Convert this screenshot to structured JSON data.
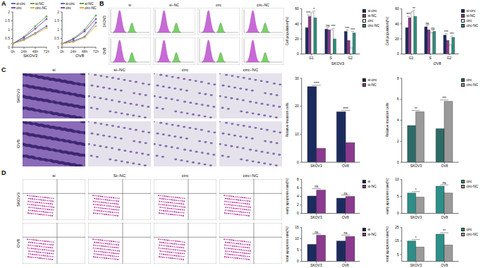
{
  "panel_labels": [
    "A",
    "B",
    "C",
    "D"
  ],
  "image_panels": [
    {
      "columns": [
        "si",
        "si−NC",
        "circ",
        "circ−NC"
      ],
      "rows": [
        "SKOV3",
        "OV8"
      ]
    },
    {
      "columns": [
        "si",
        "si−NC",
        "circ",
        "circ−NC"
      ],
      "rows": [
        "SKOV3",
        "OV8"
      ]
    },
    {
      "columns": [
        "si",
        "Si−NC",
        "circ",
        "circ−NC"
      ],
      "rows": [
        "SKOV3",
        "OV8"
      ]
    }
  ],
  "chart_data": [
    {
      "type": "line",
      "title": "SKOV3",
      "categories": [
        "0h",
        "24h",
        "48h",
        "72h"
      ],
      "ylim": [
        0,
        2
      ],
      "yticks": [
        0,
        0.5,
        1,
        1.5,
        2
      ],
      "grid": false,
      "marker": "circle",
      "series": [
        {
          "name": "si-circ",
          "color": "#4a6fc0",
          "values": [
            0.2,
            0.45,
            0.8,
            1.2
          ]
        },
        {
          "name": "si-NC",
          "color": "#5aa55a",
          "values": [
            0.2,
            0.6,
            1.2,
            1.75
          ]
        },
        {
          "name": "circ",
          "color": "#8e44ad",
          "values": [
            0.2,
            0.55,
            1.05,
            1.6
          ]
        },
        {
          "name": "circ-NC",
          "color": "#e0b040",
          "values": [
            0.2,
            0.4,
            0.75,
            1.1
          ]
        }
      ]
    },
    {
      "type": "line",
      "title": "OV8",
      "categories": [
        "0h",
        "24h",
        "48h",
        "72h"
      ],
      "ylim": [
        0,
        2
      ],
      "yticks": [
        0,
        0.5,
        1,
        1.5,
        2
      ],
      "grid": false,
      "marker": "circle",
      "series": [
        {
          "name": "si-circ",
          "color": "#4a6fc0",
          "values": [
            0.2,
            0.35,
            0.6,
            1.4
          ]
        },
        {
          "name": "si-NC",
          "color": "#5aa55a",
          "values": [
            0.2,
            0.5,
            1.0,
            1.8
          ]
        },
        {
          "name": "circ",
          "color": "#8e44ad",
          "values": [
            0.2,
            0.45,
            0.9,
            1.6
          ]
        },
        {
          "name": "circ-NC",
          "color": "#e0b040",
          "values": [
            0.2,
            0.3,
            0.55,
            1.2
          ]
        }
      ]
    },
    {
      "type": "bar",
      "x_label": "SKOV3",
      "y_label": "Cell population(%)",
      "categories": [
        "G1",
        "S",
        "G2"
      ],
      "ylim": [
        0,
        60
      ],
      "yticks": [
        0,
        20,
        40,
        60
      ],
      "series": [
        {
          "name": "si-circ",
          "color": "#1c2b5e",
          "values": [
            35,
            33,
            30
          ]
        },
        {
          "name": "si-NC",
          "color": "#8b3a8f",
          "values": [
            50,
            32,
            18
          ]
        },
        {
          "name": "circ",
          "color": "#ffffff",
          "values": [
            55,
            32,
            8
          ]
        },
        {
          "name": "circ-NC",
          "color": "#2e8f7e",
          "values": [
            48,
            20,
            28
          ]
        }
      ],
      "annotations": [
        [
          "***",
          "*"
        ],
        [
          "ns",
          "***"
        ],
        [
          "***",
          "***"
        ]
      ]
    },
    {
      "type": "bar",
      "x_label": "OV8",
      "y_label": "Cell population(%)",
      "categories": [
        "G1",
        "S",
        "G2"
      ],
      "ylim": [
        0,
        60
      ],
      "yticks": [
        0,
        20,
        40,
        60
      ],
      "series": [
        {
          "name": "si-circ",
          "color": "#1c2b5e",
          "values": [
            35,
            36,
            25
          ]
        },
        {
          "name": "si-NC",
          "color": "#8b3a8f",
          "values": [
            48,
            32,
            18
          ]
        },
        {
          "name": "circ",
          "color": "#ffffff",
          "values": [
            56,
            28,
            12
          ]
        },
        {
          "name": "circ-NC",
          "color": "#2e8f7e",
          "values": [
            50,
            30,
            22
          ]
        }
      ],
      "annotations": [
        [
          "***",
          "**"
        ],
        [
          "ns",
          "ns"
        ],
        [
          "***",
          "***"
        ]
      ]
    },
    {
      "type": "bar",
      "y_label": "Relative invasion cells",
      "categories": [
        "SKOV3",
        "OV8"
      ],
      "ylim": [
        0,
        30
      ],
      "yticks": [
        0,
        10,
        20,
        30
      ],
      "series": [
        {
          "name": "si-circ",
          "color": "#1c2b5e",
          "values": [
            27,
            18
          ]
        },
        {
          "name": "si-NC",
          "color": "#8b3a8f",
          "values": [
            5,
            7
          ]
        }
      ],
      "annotations": [
        "****",
        "****"
      ]
    },
    {
      "type": "bar",
      "y_label": "Relative invasion cells",
      "categories": [
        "SKOV3",
        "OV8"
      ],
      "ylim": [
        0,
        8
      ],
      "yticks": [
        0,
        2,
        4,
        6,
        8
      ],
      "series": [
        {
          "name": "circ",
          "color": "#2d6b66",
          "values": [
            3.5,
            3.2
          ]
        },
        {
          "name": "circ-NC",
          "color": "#9a9a9a",
          "values": [
            4.8,
            5.8
          ]
        }
      ],
      "annotations": [
        "**",
        "***"
      ]
    },
    {
      "type": "bar",
      "y_label": "early apoptosis rate(%)",
      "categories": [
        "SKOV3",
        "OV8"
      ],
      "ylim": [
        0,
        8
      ],
      "yticks": [
        0,
        2,
        4,
        6,
        8
      ],
      "series": [
        {
          "name": "si",
          "color": "#1c2b5e",
          "values": [
            4.1,
            3.6
          ]
        },
        {
          "name": "si-NC",
          "color": "#8b3a8f",
          "values": [
            5.5,
            4.0
          ]
        }
      ],
      "annotations": [
        "ns",
        "ns"
      ]
    },
    {
      "type": "bar",
      "y_label": "early apoptosis rate(%)",
      "categories": [
        "SKOV3",
        "OV8"
      ],
      "ylim": [
        0,
        10
      ],
      "yticks": [
        0,
        5,
        10
      ],
      "series": [
        {
          "name": "circ",
          "color": "#2d8f88",
          "values": [
            6.0,
            8.0
          ]
        },
        {
          "name": "circ-NC",
          "color": "#9a9a9a",
          "values": [
            4.8,
            6.0
          ]
        }
      ],
      "annotations": [
        "*",
        "ns"
      ]
    },
    {
      "type": "bar",
      "y_label": "total apoptosis rate(%)",
      "categories": [
        "SKOV3",
        "OV8"
      ],
      "ylim": [
        0,
        15
      ],
      "yticks": [
        0,
        5,
        10,
        15
      ],
      "series": [
        {
          "name": "si",
          "color": "#1c2b5e",
          "values": [
            7.5,
            9
          ]
        },
        {
          "name": "si-NC",
          "color": "#8b3a8f",
          "values": [
            11.5,
            11
          ]
        }
      ],
      "annotations": [
        "ns",
        "ns"
      ]
    },
    {
      "type": "bar",
      "y_label": "total apoptosis rate(%)",
      "categories": [
        "SKOV3",
        "OV8"
      ],
      "ylim": [
        0,
        25
      ],
      "yticks": [
        0,
        5,
        10,
        15,
        20,
        25
      ],
      "series": [
        {
          "name": "circ",
          "color": "#2d8f88",
          "values": [
            15,
            20
          ]
        },
        {
          "name": "circ-NC",
          "color": "#9a9a9a",
          "values": [
            10.5,
            12
          ]
        }
      ],
      "annotations": [
        "*",
        "**"
      ]
    }
  ]
}
